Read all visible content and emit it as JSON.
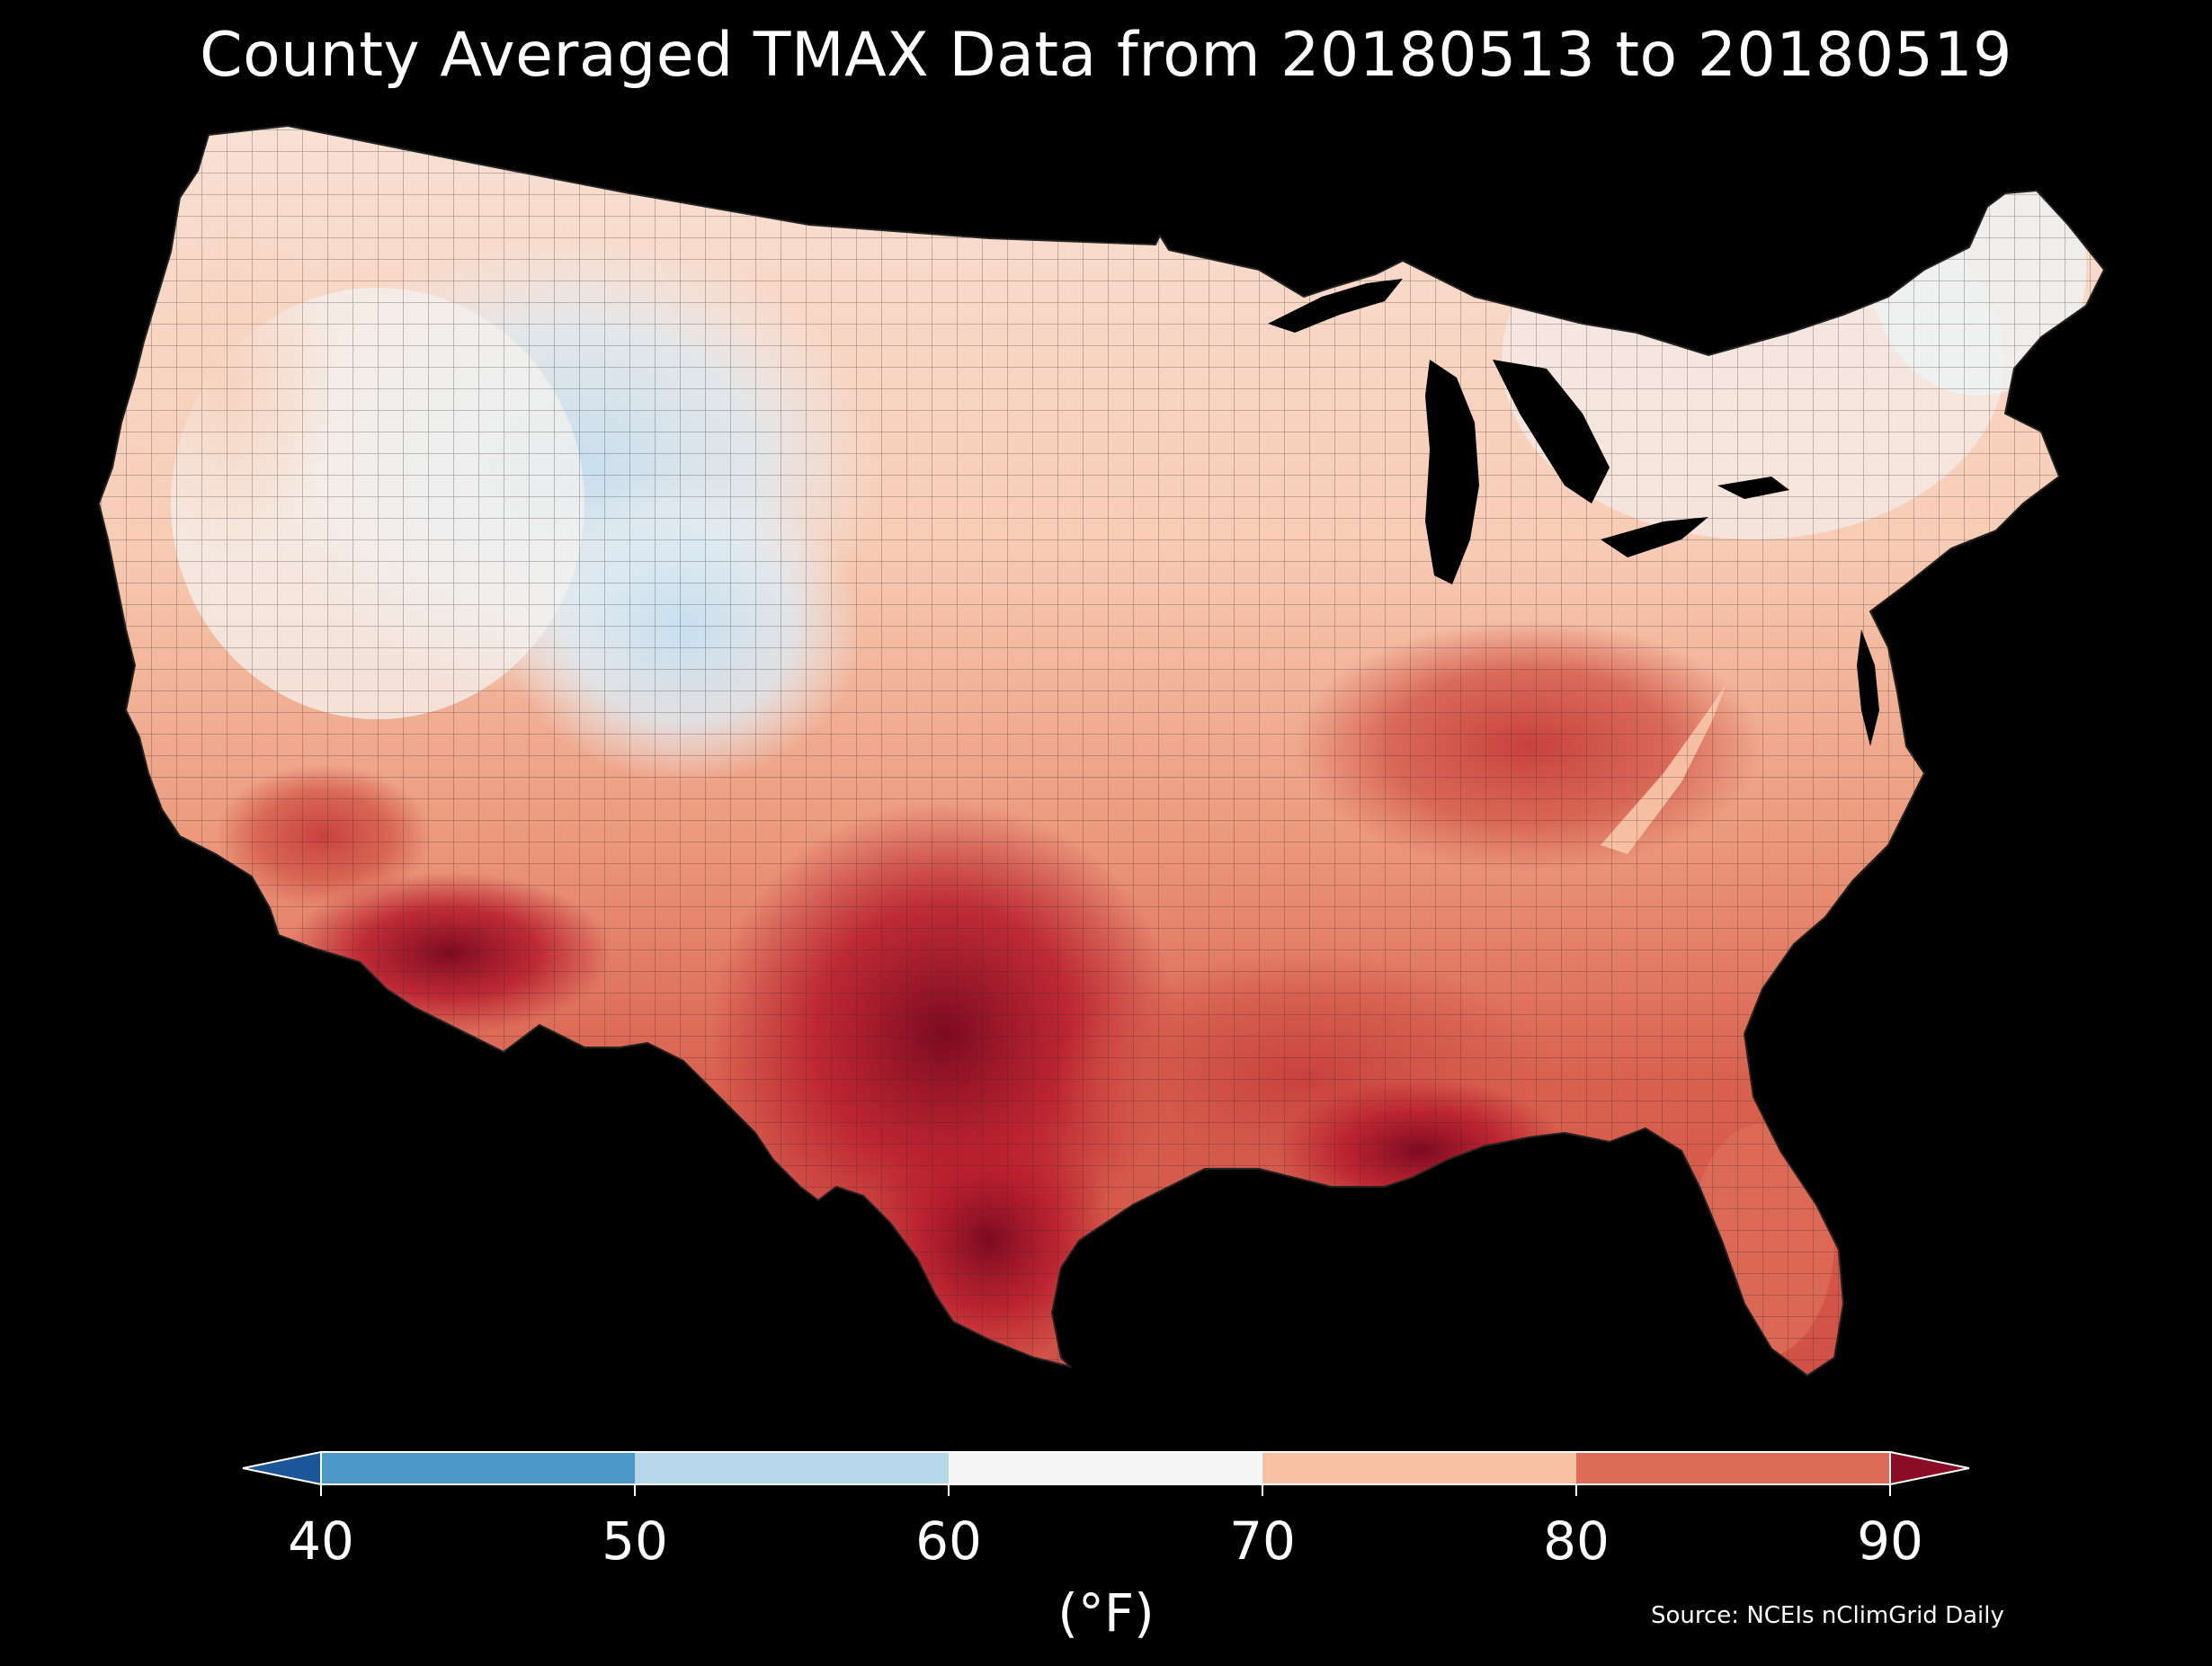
{
  "title": "County Averaged TMAX Data from 20180513 to 20180519",
  "colorbar": {
    "ticks": [
      "40",
      "50",
      "60",
      "70",
      "80",
      "90"
    ],
    "unit_label": "(°F)",
    "bins": [
      {
        "range": "<40",
        "color": "#1a5698"
      },
      {
        "range": "40-50",
        "color": "#4a97c8"
      },
      {
        "range": "50-60",
        "color": "#b6d7ea"
      },
      {
        "range": "60-70",
        "color": "#f5f5f5"
      },
      {
        "range": "70-80",
        "color": "#f8c1a4"
      },
      {
        "range": "80-90",
        "color": "#dc6b58"
      },
      {
        "range": ">90",
        "color": "#8d0c25"
      }
    ],
    "extend": "both"
  },
  "source": "Source: NCEIs nClimGrid Daily",
  "map": {
    "region": "Contiguous United States counties",
    "background_color": "#000000",
    "land_border_color": "#333333",
    "water_color": "#000000",
    "value_field": "weekly mean TMAX (°F)"
  }
}
